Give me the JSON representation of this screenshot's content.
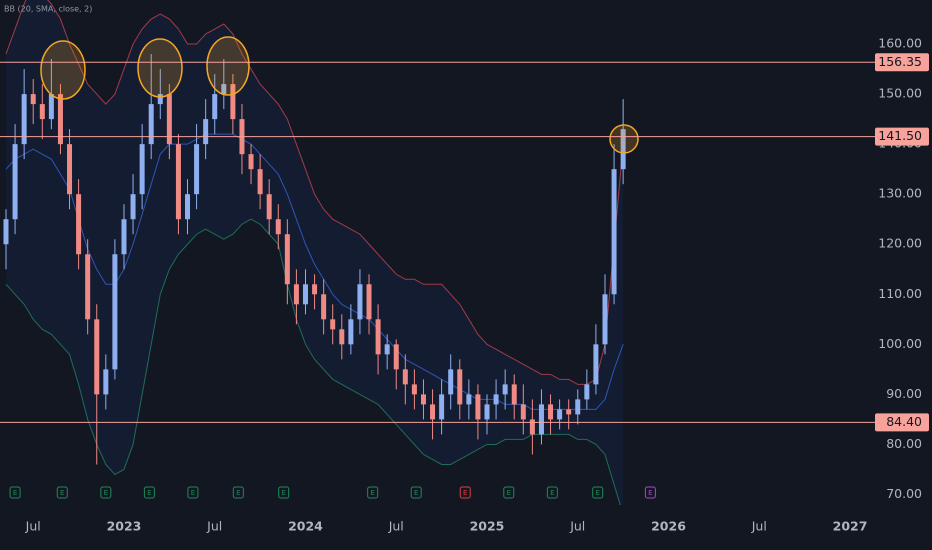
{
  "chart_data": {
    "type": "candlestick",
    "indicator_label": "BB (20, SMA, close, 2)",
    "x": [
      2022.35,
      2022.4,
      2022.45,
      2022.5,
      2022.55,
      2022.6,
      2022.65,
      2022.7,
      2022.75,
      2022.8,
      2022.85,
      2022.9,
      2022.95,
      2023.0,
      2023.05,
      2023.1,
      2023.15,
      2023.2,
      2023.25,
      2023.3,
      2023.35,
      2023.4,
      2023.45,
      2023.5,
      2023.55,
      2023.6,
      2023.65,
      2023.7,
      2023.75,
      2023.8,
      2023.85,
      2023.9,
      2023.95,
      2024.0,
      2024.05,
      2024.1,
      2024.15,
      2024.2,
      2024.25,
      2024.3,
      2024.35,
      2024.4,
      2024.45,
      2024.5,
      2024.55,
      2024.6,
      2024.65,
      2024.7,
      2024.75,
      2024.8,
      2024.85,
      2024.9,
      2024.95,
      2025.0,
      2025.05,
      2025.1,
      2025.15,
      2025.2,
      2025.25,
      2025.3,
      2025.35,
      2025.4,
      2025.45,
      2025.5,
      2025.55,
      2025.6,
      2025.65,
      2025.7,
      2025.75
    ],
    "open": [
      120,
      125,
      140,
      150,
      148,
      145,
      150,
      140,
      130,
      118,
      105,
      90,
      95,
      118,
      125,
      130,
      140,
      148,
      150,
      140,
      125,
      130,
      140,
      145,
      150,
      152,
      145,
      138,
      135,
      130,
      125,
      122,
      112,
      108,
      112,
      110,
      105,
      103,
      100,
      105,
      112,
      105,
      98,
      100,
      95,
      92,
      90,
      88,
      85,
      90,
      95,
      88,
      90,
      85,
      88,
      90,
      92,
      88,
      85,
      82,
      88,
      85,
      87,
      86,
      89,
      92,
      100,
      110,
      135
    ],
    "high": [
      127,
      144,
      155,
      153,
      152,
      157,
      152,
      143,
      133,
      121,
      108,
      98,
      121,
      128,
      134,
      144,
      158,
      155,
      152,
      142,
      133,
      144,
      149,
      154,
      157,
      154,
      148,
      140,
      138,
      133,
      128,
      125,
      115,
      115,
      114,
      113,
      108,
      106,
      108,
      115,
      114,
      108,
      102,
      101,
      98,
      95,
      93,
      91,
      93,
      98,
      97,
      93,
      92,
      90,
      93,
      95,
      94,
      92,
      89,
      91,
      90,
      89,
      89,
      91,
      95,
      104,
      114,
      140,
      149
    ],
    "low": [
      115,
      122,
      137,
      144,
      141,
      143,
      138,
      127,
      115,
      102,
      76,
      87,
      93,
      115,
      122,
      127,
      137,
      145,
      137,
      122,
      122,
      127,
      137,
      142,
      147,
      142,
      134,
      132,
      127,
      122,
      119,
      108,
      104,
      106,
      107,
      102,
      100,
      97,
      98,
      102,
      102,
      94,
      95,
      91,
      88,
      87,
      85,
      81,
      82,
      87,
      85,
      85,
      81,
      82,
      85,
      87,
      85,
      82,
      78,
      80,
      82,
      83,
      83,
      84,
      87,
      90,
      98,
      108,
      132
    ],
    "close": [
      125,
      140,
      150,
      148,
      145,
      150,
      140,
      130,
      118,
      105,
      90,
      95,
      118,
      125,
      130,
      140,
      148,
      150,
      140,
      125,
      130,
      140,
      145,
      150,
      152,
      145,
      138,
      135,
      130,
      125,
      122,
      112,
      108,
      112,
      110,
      105,
      103,
      100,
      105,
      112,
      105,
      98,
      100,
      95,
      92,
      90,
      88,
      85,
      90,
      95,
      88,
      90,
      85,
      88,
      90,
      92,
      88,
      85,
      82,
      88,
      85,
      87,
      86,
      89,
      92,
      100,
      110,
      135,
      143
    ],
    "up_color": "#8fb0f0",
    "down_color": "#f08a84",
    "bands": [
      {
        "color": "#a33b48",
        "values": [
          158,
          163,
          168,
          172,
          170,
          168,
          165,
          160,
          156,
          152,
          150,
          148,
          150,
          155,
          160,
          163,
          165,
          166,
          165,
          163,
          160,
          160,
          162,
          163,
          164,
          162,
          158,
          155,
          152,
          150,
          148,
          145,
          140,
          135,
          130,
          127,
          125,
          124,
          123,
          122,
          120,
          118,
          116,
          114,
          113,
          113,
          112,
          112,
          112,
          110,
          108,
          105,
          102,
          100,
          99,
          98,
          97,
          96,
          95,
          94,
          94,
          93,
          93,
          92,
          92,
          93,
          100,
          120,
          140
        ]
      },
      {
        "color": "#2f56b8",
        "values": [
          135,
          137,
          138,
          139,
          138,
          137,
          134,
          131,
          125,
          119,
          115,
          112,
          112,
          115,
          120,
          126,
          132,
          138,
          140,
          140,
          140,
          141,
          142,
          142,
          142,
          142,
          141,
          140,
          138,
          136,
          134,
          130,
          125,
          120,
          116,
          113,
          110,
          108,
          107,
          106,
          105,
          103,
          101,
          99,
          97,
          96,
          95,
          94,
          93,
          92,
          91,
          90,
          89,
          89,
          89,
          88,
          88,
          88,
          87,
          87,
          87,
          87,
          87,
          87,
          87,
          87,
          89,
          95,
          100
        ]
      },
      {
        "color": "#1f6e58",
        "values": [
          112,
          110,
          108,
          105,
          103,
          102,
          100,
          98,
          92,
          85,
          80,
          76,
          74,
          75,
          80,
          90,
          100,
          110,
          115,
          118,
          120,
          122,
          123,
          122,
          121,
          122,
          124,
          125,
          124,
          122,
          120,
          112,
          105,
          100,
          97,
          95,
          93,
          92,
          91,
          90,
          89,
          88,
          86,
          84,
          82,
          80,
          78,
          77,
          76,
          76,
          77,
          78,
          79,
          80,
          80,
          81,
          81,
          81,
          82,
          82,
          82,
          82,
          82,
          81,
          81,
          80,
          78,
          72,
          66
        ]
      }
    ],
    "levels": [
      {
        "value": 156.35,
        "label": "156.35"
      },
      {
        "value": 141.5,
        "label": "141.50"
      },
      {
        "value": 84.4,
        "label": "84.40"
      }
    ],
    "level_color": "#f7a29b",
    "xlim": [
      2022.317,
      2027.11
    ],
    "ylim": [
      67.9,
      168.8
    ],
    "yticks": [
      {
        "value": 70,
        "label": "70.00"
      },
      {
        "value": 80,
        "label": "80.00"
      },
      {
        "value": 90,
        "label": "90.00"
      },
      {
        "value": 100,
        "label": "100.00"
      },
      {
        "value": 110,
        "label": "110.00"
      },
      {
        "value": 120,
        "label": "120.00"
      },
      {
        "value": 130,
        "label": "130.00"
      },
      {
        "value": 140,
        "label": "140.00"
      },
      {
        "value": 150,
        "label": "150.00"
      },
      {
        "value": 160,
        "label": "160.00"
      }
    ],
    "xticks": [
      {
        "value": 2022.5,
        "label": "Jul"
      },
      2023,
      {
        "value": 2023.5,
        "label": "Jul"
      },
      2024,
      {
        "value": 2024.5,
        "label": "Jul"
      },
      2025,
      {
        "value": 2025.5,
        "label": "Jul"
      },
      2026,
      {
        "value": 2026.5,
        "label": "Jul"
      },
      2027
    ],
    "earnings": {
      "label": "E",
      "x": [
        2022.4,
        2022.66,
        2022.9,
        2023.14,
        2023.38,
        2023.63,
        2023.88,
        2024.37,
        2024.61,
        2024.88,
        2025.12,
        2025.36,
        2025.61,
        2025.9
      ],
      "colors": [
        "#1f8a5a",
        "#1f8a5a",
        "#1f8a5a",
        "#1f8a5a",
        "#1f8a5a",
        "#1f8a5a",
        "#1f8a5a",
        "#1f8a5a",
        "#1f8a5a",
        "#d9413f",
        "#1f8a5a",
        "#1f8a5a",
        "#1f8a5a",
        "#b43fd6"
      ]
    }
  }
}
